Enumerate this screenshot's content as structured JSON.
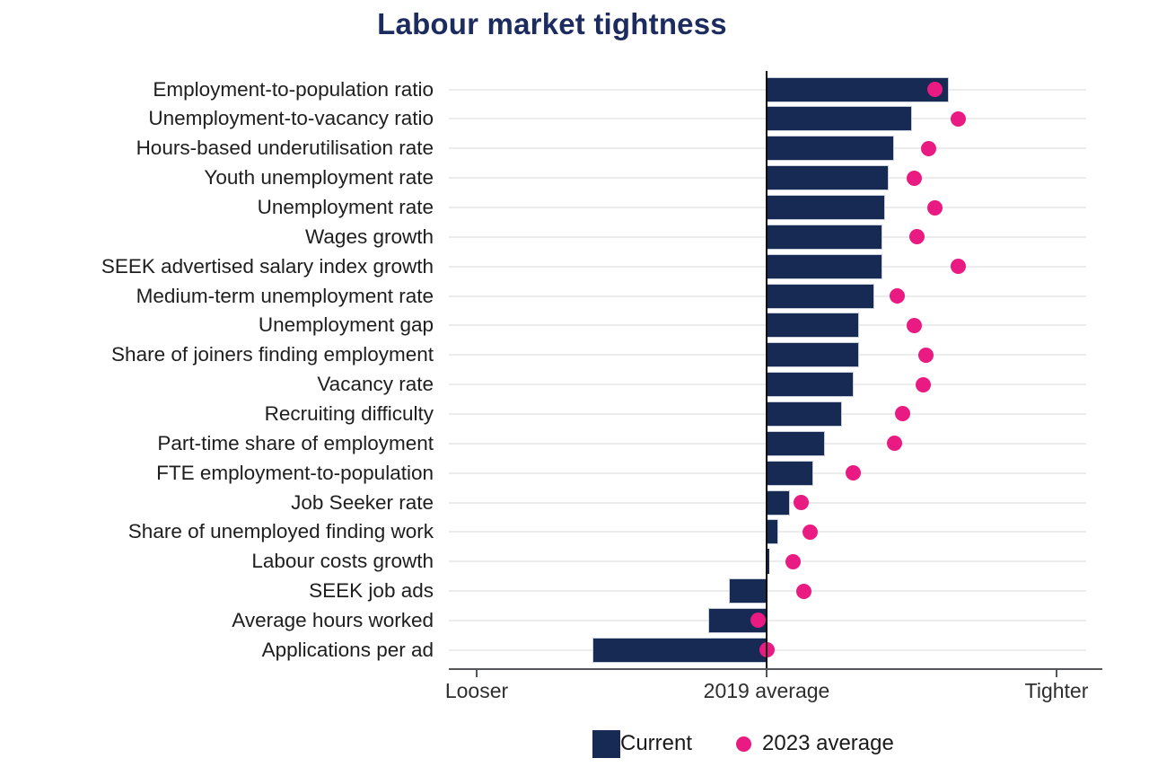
{
  "title": "Labour market tightness",
  "colors": {
    "navy": "#172A54",
    "pink": "#E91A81",
    "title": "#1C2C5E",
    "grid": "#ECECEC",
    "axis": "#55565A",
    "zero_line": "#0B0B0B",
    "category_label": "#1E1E1E",
    "bar_border": "#C9CFDA"
  },
  "chart_data": {
    "type": "bar",
    "orientation": "horizontal",
    "title": "Labour market tightness",
    "units_note": "No numeric axis shown; values in relative tightness units where 0 = '2019 average' line, +1 = 'Tighter' tick, -1 = 'Looser' tick",
    "categories": [
      "Employment-to-population ratio",
      "Unemployment-to-vacancy ratio",
      "Hours-based underutilisation rate",
      "Youth unemployment rate",
      "Unemployment rate",
      "Wages growth",
      "SEEK advertised salary index growth",
      "Medium-term unemployment rate",
      "Unemployment gap",
      "Share of joiners finding employment",
      "Vacancy rate",
      "Recruiting difficulty",
      "Part-time share of employment",
      "FTE employment-to-population",
      "Job Seeker rate",
      "Share of unemployed finding work",
      "Labour costs growth",
      "SEEK job ads",
      "Average hours worked",
      "Applications per ad"
    ],
    "series": [
      {
        "name": "Current",
        "type": "bar",
        "color_key": "navy",
        "values": [
          0.63,
          0.5,
          0.44,
          0.42,
          0.41,
          0.4,
          0.4,
          0.37,
          0.32,
          0.32,
          0.3,
          0.26,
          0.2,
          0.16,
          0.08,
          0.04,
          0.01,
          -0.13,
          -0.2,
          -0.6
        ]
      },
      {
        "name": "2023 average",
        "type": "scatter",
        "color_key": "pink",
        "values": [
          0.58,
          0.66,
          0.56,
          0.51,
          0.58,
          0.52,
          0.66,
          0.45,
          0.51,
          0.55,
          0.54,
          0.47,
          0.44,
          0.3,
          0.12,
          0.15,
          0.09,
          0.13,
          -0.03,
          0.0
        ]
      }
    ],
    "xlim": [
      -1.1,
      1.16
    ],
    "x_ticks": [
      {
        "value": -1,
        "label": "Looser"
      },
      {
        "value": 0,
        "label": "2019 average"
      },
      {
        "value": 1,
        "label": "Tighter"
      }
    ],
    "grid": "one horizontal gridline per category, behind bars",
    "legend_position": "bottom"
  },
  "legend": {
    "items": [
      {
        "label": "Current",
        "marker": "square"
      },
      {
        "label": "2023 average",
        "marker": "dot"
      }
    ]
  }
}
